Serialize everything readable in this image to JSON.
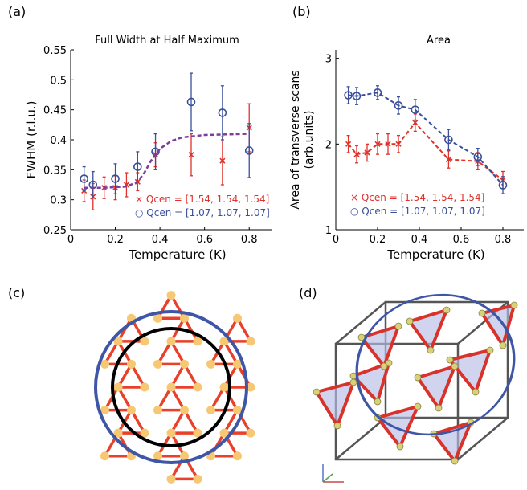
{
  "panels": {
    "a": "(a)",
    "b": "(b)",
    "c": "(c)",
    "d": "(d)"
  },
  "colors": {
    "red": "#e0312b",
    "blue": "#3a4f9a",
    "purple": "#7a3f9a",
    "lattice_red": "#e8402a",
    "lattice_node": "#f6c873",
    "circle_blue": "#3f56a6",
    "circle_black": "#000000"
  },
  "chart_data": [
    {
      "type": "scatter",
      "panel": "(a)",
      "title": "Full Width at Half Maximum",
      "xlabel": "Temperature (K)",
      "ylabel": "FWHM (r.l.u.)",
      "xlim": [
        0,
        0.9
      ],
      "ylim": [
        0.25,
        0.55
      ],
      "xticks": [
        0,
        0.2,
        0.4,
        0.6,
        0.8
      ],
      "yticks": [
        0.25,
        0.3,
        0.35,
        0.4,
        0.45,
        0.5,
        0.55
      ],
      "xtick_labels": [
        "0",
        "0.2",
        "0.4",
        "0.6",
        "0.8"
      ],
      "ytick_labels": [
        "0.25",
        "0.3",
        "0.35",
        "0.4",
        "0.45",
        "0.5",
        "0.55"
      ],
      "legend": [
        "× Qcen = [1.54, 1.54, 1.54]",
        "○ Qcen = [1.07, 1.07, 1.07]"
      ],
      "series": [
        {
          "name": "Qcen = [1.54, 1.54, 1.54]",
          "marker": "x",
          "color": "#e0312b",
          "x": [
            0.06,
            0.1,
            0.15,
            0.2,
            0.25,
            0.3,
            0.38,
            0.54,
            0.68,
            0.8
          ],
          "y": [
            0.315,
            0.305,
            0.32,
            0.32,
            0.325,
            0.33,
            0.375,
            0.375,
            0.365,
            0.42
          ],
          "err": [
            0.018,
            0.022,
            0.018,
            0.02,
            0.02,
            0.015,
            0.02,
            0.035,
            0.04,
            0.04
          ]
        },
        {
          "name": "Qcen = [1.07, 1.07, 1.07]",
          "marker": "o",
          "color": "#3a4f9a",
          "x": [
            0.06,
            0.1,
            0.2,
            0.3,
            0.38,
            0.54,
            0.68,
            0.8
          ],
          "y": [
            0.335,
            0.325,
            0.335,
            0.355,
            0.38,
            0.463,
            0.445,
            0.382
          ],
          "err": [
            0.02,
            0.022,
            0.025,
            0.025,
            0.03,
            0.048,
            0.045,
            0.045
          ]
        },
        {
          "name": "fit",
          "style": "dashed",
          "color": "#7a3f9a",
          "x": [
            0.06,
            0.15,
            0.25,
            0.3,
            0.33,
            0.36,
            0.4,
            0.45,
            0.5,
            0.6,
            0.7,
            0.8
          ],
          "y": [
            0.32,
            0.32,
            0.322,
            0.33,
            0.345,
            0.365,
            0.385,
            0.398,
            0.404,
            0.408,
            0.409,
            0.41
          ]
        }
      ]
    },
    {
      "type": "scatter",
      "panel": "(b)",
      "title": "Area",
      "xlabel": "Temperature (K)",
      "ylabel": "Area of transverse scans (arb.units)",
      "ylabel_lines": [
        "Area of transverse scans",
        "(arb.units)"
      ],
      "xlim": [
        0,
        0.9
      ],
      "ylim": [
        1,
        3.1
      ],
      "xticks": [
        0,
        0.2,
        0.4,
        0.6,
        0.8
      ],
      "yticks": [
        1,
        2,
        3
      ],
      "xtick_labels": [
        "0",
        "0.2",
        "0.4",
        "0.6",
        "0.8"
      ],
      "ytick_labels": [
        "1",
        "2",
        "3"
      ],
      "legend": [
        "× Qcen = [1.54, 1.54, 1.54]",
        "○ Qcen = [1.07, 1.07, 1.07]"
      ],
      "series": [
        {
          "name": "Qcen = [1.54, 1.54, 1.54]",
          "marker": "x",
          "color": "#e0312b",
          "x": [
            0.06,
            0.1,
            0.15,
            0.2,
            0.25,
            0.3,
            0.38,
            0.54,
            0.68,
            0.8
          ],
          "y": [
            2.0,
            1.88,
            1.9,
            2.0,
            2.0,
            2.0,
            2.25,
            1.82,
            1.8,
            1.58
          ],
          "err": [
            0.1,
            0.1,
            0.1,
            0.12,
            0.12,
            0.1,
            0.1,
            0.1,
            0.1,
            0.1
          ],
          "line": "dashed"
        },
        {
          "name": "Qcen = [1.07, 1.07, 1.07]",
          "marker": "o",
          "color": "#3a4f9a",
          "x": [
            0.06,
            0.1,
            0.2,
            0.3,
            0.38,
            0.54,
            0.68,
            0.8
          ],
          "y": [
            2.57,
            2.56,
            2.6,
            2.45,
            2.4,
            2.05,
            1.85,
            1.52
          ],
          "err": [
            0.1,
            0.1,
            0.08,
            0.1,
            0.12,
            0.12,
            0.1,
            0.1
          ],
          "line": "dashed"
        }
      ]
    }
  ]
}
